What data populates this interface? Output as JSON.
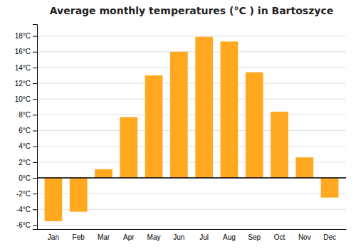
{
  "chart_data": {
    "type": "bar",
    "title": "Average monthly temperatures (°C ) in Bartoszyce",
    "categories": [
      "Jan",
      "Feb",
      "Mar",
      "Apr",
      "May",
      "Jun",
      "Jul",
      "Aug",
      "Sep",
      "Oct",
      "Nov",
      "Dec"
    ],
    "values": [
      -5.5,
      -4.3,
      1.1,
      7.7,
      13.0,
      16.0,
      17.9,
      17.3,
      13.4,
      8.4,
      2.6,
      -2.5
    ],
    "color": "#FFA820",
    "ylim": [
      -6.5,
      19.5
    ],
    "yticks": [
      {
        "value": -6,
        "label": "-6°C"
      },
      {
        "value": -4,
        "label": "-4°C"
      },
      {
        "value": -2,
        "label": "-2°C"
      },
      {
        "value": 0,
        "label": "0°C"
      },
      {
        "value": 2,
        "label": "2°C"
      },
      {
        "value": 4,
        "label": "4°C"
      },
      {
        "value": 6,
        "label": "6°C"
      },
      {
        "value": 8,
        "label": "8°C"
      },
      {
        "value": 10,
        "label": "10°C"
      },
      {
        "value": 12,
        "label": "12°C"
      },
      {
        "value": 14,
        "label": "14°C"
      },
      {
        "value": 16,
        "label": "16°C"
      },
      {
        "value": 18,
        "label": "18°C"
      }
    ],
    "grid": true
  }
}
